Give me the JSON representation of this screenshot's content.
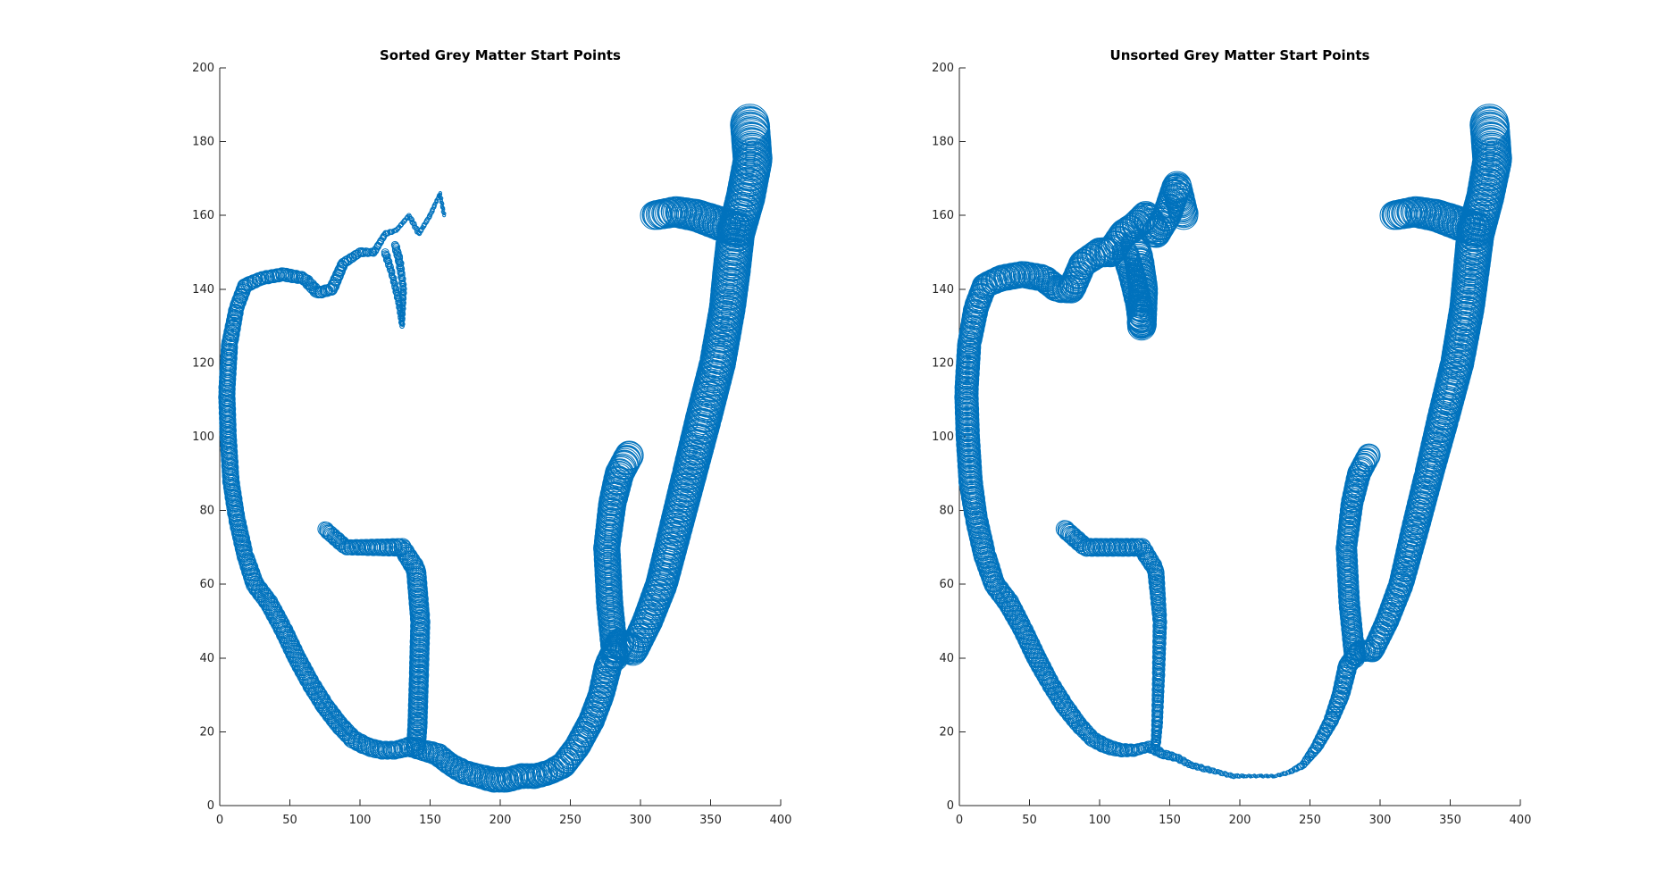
{
  "figure": {
    "background": "#ffffff",
    "marker_color": "#0072BD"
  },
  "chart_data": [
    {
      "type": "scatter",
      "title": "Sorted Grey Matter Start Points",
      "xlabel": "",
      "ylabel": "",
      "xlim": [
        0,
        400
      ],
      "ylim": [
        0,
        200
      ],
      "xticks": [
        0,
        50,
        100,
        150,
        200,
        250,
        300,
        350,
        400
      ],
      "yticks": [
        0,
        20,
        40,
        60,
        80,
        100,
        120,
        140,
        160,
        180,
        200
      ],
      "marker": "circle",
      "marker_size_note": "variable",
      "path": [
        [
          160,
          160,
          1
        ],
        [
          157,
          166,
          1
        ],
        [
          150,
          160,
          1.5
        ],
        [
          142,
          155,
          1.5
        ],
        [
          135,
          160,
          1.5
        ],
        [
          126,
          156,
          1.5
        ],
        [
          118,
          155,
          2
        ],
        [
          110,
          150,
          2.5
        ],
        [
          100,
          150,
          3
        ],
        [
          88,
          147,
          3.5
        ],
        [
          80,
          140,
          4
        ],
        [
          70,
          139,
          4
        ],
        [
          60,
          143,
          4
        ],
        [
          45,
          144,
          4.5
        ],
        [
          30,
          143,
          4.5
        ],
        [
          18,
          141,
          5
        ],
        [
          12,
          135,
          5
        ],
        [
          7,
          125,
          5.5
        ],
        [
          5,
          112,
          5.5
        ],
        [
          6,
          100,
          5.5
        ],
        [
          8,
          88,
          5.5
        ],
        [
          12,
          78,
          5.5
        ],
        [
          18,
          68,
          5.5
        ],
        [
          25,
          60,
          6
        ],
        [
          35,
          55,
          6
        ],
        [
          45,
          48,
          6
        ],
        [
          55,
          40,
          6
        ],
        [
          65,
          33,
          6
        ],
        [
          75,
          27,
          6
        ],
        [
          85,
          22,
          6
        ],
        [
          95,
          18,
          6
        ],
        [
          105,
          16,
          6
        ],
        [
          115,
          15,
          6
        ],
        [
          125,
          15,
          6
        ],
        [
          135,
          16,
          6.5
        ],
        [
          145,
          15,
          7
        ],
        [
          155,
          14,
          7.5
        ],
        [
          165,
          11,
          7.5
        ],
        [
          175,
          9,
          8
        ],
        [
          185,
          8,
          8
        ],
        [
          195,
          7,
          8.5
        ],
        [
          205,
          7,
          8.5
        ],
        [
          215,
          8,
          8.5
        ],
        [
          225,
          8,
          8.5
        ],
        [
          235,
          9,
          8.5
        ],
        [
          245,
          11,
          9
        ],
        [
          255,
          16,
          9
        ],
        [
          265,
          23,
          9
        ],
        [
          272,
          30,
          9
        ],
        [
          277,
          38,
          9.5
        ],
        [
          285,
          44,
          10
        ],
        [
          295,
          42,
          10
        ],
        [
          305,
          50,
          10.5
        ],
        [
          315,
          60,
          11
        ],
        [
          325,
          75,
          11.5
        ],
        [
          335,
          90,
          12
        ],
        [
          345,
          105,
          12.5
        ],
        [
          355,
          120,
          12.5
        ],
        [
          362,
          135,
          12.5
        ],
        [
          365,
          145,
          13
        ],
        [
          368,
          155,
          13
        ],
        [
          375,
          165,
          13.5
        ],
        [
          380,
          175,
          13.5
        ],
        [
          378,
          185,
          13.5
        ]
      ],
      "branches": [
        [
          [
            130,
            130,
            1.5
          ],
          [
            131,
            140,
            2
          ],
          [
            128,
            148,
            2.5
          ],
          [
            125,
            152,
            2.5
          ]
        ],
        [
          [
            130,
            130,
            1.5
          ],
          [
            128,
            136,
            2
          ],
          [
            123,
            144,
            2
          ],
          [
            118,
            150,
            2.5
          ]
        ],
        [
          [
            75,
            75,
            5
          ],
          [
            90,
            70,
            5
          ],
          [
            110,
            70,
            5.5
          ],
          [
            130,
            70,
            6
          ],
          [
            140,
            64,
            6.5
          ],
          [
            143,
            50,
            6.5
          ],
          [
            142,
            35,
            6.5
          ],
          [
            141,
            22,
            6.5
          ],
          [
            140,
            16,
            6.5
          ]
        ],
        [
          [
            282,
            40,
            9
          ],
          [
            278,
            55,
            9
          ],
          [
            276,
            70,
            9
          ],
          [
            280,
            82,
            9.5
          ],
          [
            285,
            90,
            10
          ],
          [
            292,
            95,
            10
          ]
        ],
        [
          [
            310,
            160,
            10
          ],
          [
            325,
            161,
            10.5
          ],
          [
            340,
            160,
            11
          ],
          [
            355,
            158,
            11.5
          ],
          [
            370,
            156,
            12
          ]
        ]
      ]
    },
    {
      "type": "scatter",
      "title": "Unsorted Grey Matter Start Points",
      "xlabel": "",
      "ylabel": "",
      "xlim": [
        0,
        400
      ],
      "ylim": [
        0,
        200
      ],
      "xticks": [
        0,
        50,
        100,
        150,
        200,
        250,
        300,
        350,
        400
      ],
      "yticks": [
        0,
        20,
        40,
        60,
        80,
        100,
        120,
        140,
        160,
        180,
        200
      ],
      "marker": "circle",
      "marker_size_note": "variable",
      "path": [
        [
          160,
          160,
          10
        ],
        [
          155,
          168,
          10
        ],
        [
          148,
          160,
          10
        ],
        [
          140,
          155,
          10
        ],
        [
          133,
          160,
          10
        ],
        [
          125,
          157,
          10
        ],
        [
          117,
          155,
          10
        ],
        [
          108,
          150,
          10
        ],
        [
          100,
          150,
          10
        ],
        [
          88,
          147,
          9.5
        ],
        [
          80,
          140,
          9.5
        ],
        [
          70,
          140,
          9
        ],
        [
          60,
          143,
          9
        ],
        [
          45,
          144,
          9
        ],
        [
          30,
          143,
          9
        ],
        [
          18,
          141,
          8.5
        ],
        [
          12,
          135,
          8.5
        ],
        [
          7,
          125,
          8
        ],
        [
          5,
          112,
          8
        ],
        [
          6,
          100,
          8
        ],
        [
          8,
          88,
          8
        ],
        [
          12,
          78,
          7.5
        ],
        [
          18,
          68,
          7.5
        ],
        [
          25,
          60,
          7
        ],
        [
          35,
          55,
          7
        ],
        [
          45,
          48,
          6.5
        ],
        [
          55,
          40,
          6.5
        ],
        [
          65,
          33,
          6
        ],
        [
          75,
          27,
          6
        ],
        [
          85,
          22,
          5.5
        ],
        [
          95,
          18,
          5
        ],
        [
          105,
          16,
          5
        ],
        [
          115,
          15,
          4.5
        ],
        [
          125,
          15,
          4
        ],
        [
          135,
          16,
          3.5
        ],
        [
          145,
          14,
          3
        ],
        [
          155,
          13,
          2.5
        ],
        [
          165,
          11,
          2
        ],
        [
          175,
          10,
          2
        ],
        [
          185,
          9,
          1.5
        ],
        [
          195,
          8,
          1.5
        ],
        [
          205,
          8,
          1
        ],
        [
          215,
          8,
          1
        ],
        [
          225,
          8,
          1
        ],
        [
          235,
          9,
          1.5
        ],
        [
          245,
          11,
          2.5
        ],
        [
          255,
          16,
          4
        ],
        [
          265,
          23,
          5
        ],
        [
          272,
          30,
          6
        ],
        [
          277,
          38,
          6.5
        ],
        [
          285,
          42,
          7
        ],
        [
          295,
          42,
          7.5
        ],
        [
          305,
          50,
          8
        ],
        [
          315,
          60,
          8.5
        ],
        [
          325,
          75,
          9.5
        ],
        [
          335,
          90,
          10
        ],
        [
          345,
          105,
          11
        ],
        [
          355,
          120,
          11.5
        ],
        [
          362,
          135,
          12
        ],
        [
          365,
          145,
          12.5
        ],
        [
          368,
          155,
          13
        ],
        [
          375,
          165,
          13
        ],
        [
          380,
          175,
          13.5
        ],
        [
          378,
          185,
          13.5
        ]
      ],
      "branches": [
        [
          [
            130,
            130,
            10
          ],
          [
            131,
            140,
            10
          ],
          [
            128,
            148,
            10
          ],
          [
            125,
            152,
            10
          ]
        ],
        [
          [
            130,
            130,
            9
          ],
          [
            128,
            136,
            9
          ],
          [
            123,
            144,
            9
          ],
          [
            118,
            150,
            9
          ]
        ],
        [
          [
            75,
            75,
            6
          ],
          [
            90,
            70,
            6
          ],
          [
            110,
            70,
            6
          ],
          [
            130,
            70,
            6
          ],
          [
            140,
            64,
            5.5
          ],
          [
            143,
            50,
            4.5
          ],
          [
            142,
            35,
            4
          ],
          [
            141,
            22,
            3.5
          ],
          [
            140,
            16,
            3
          ]
        ],
        [
          [
            282,
            40,
            7
          ],
          [
            278,
            55,
            7
          ],
          [
            276,
            70,
            7
          ],
          [
            280,
            82,
            7.5
          ],
          [
            285,
            90,
            8
          ],
          [
            292,
            95,
            8
          ]
        ],
        [
          [
            310,
            160,
            10
          ],
          [
            325,
            161,
            10.5
          ],
          [
            340,
            160,
            11
          ],
          [
            355,
            158,
            11.5
          ],
          [
            370,
            156,
            12
          ]
        ]
      ]
    }
  ]
}
